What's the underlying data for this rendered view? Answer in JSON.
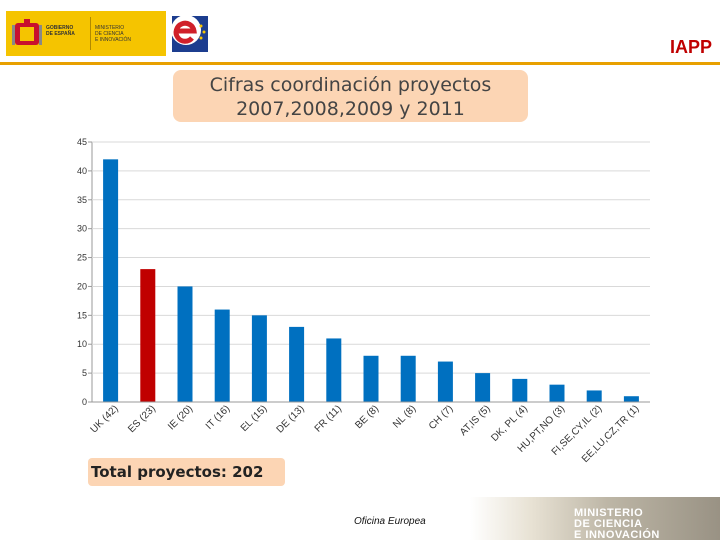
{
  "header": {
    "gov_text": "GOBIERNO\nDE ESPAÑA",
    "ministry_text": "MINISTERIO\nDE CIENCIA\nE INNOVACIÓN",
    "iapp": "IAPP"
  },
  "title_lines": [
    "Cifras coordinación proyectos",
    "2007,2008,2009 y 2011"
  ],
  "total_label": "Total proyectos: 202",
  "footer": {
    "office": "Oficina Europea",
    "brand_lines": [
      "MINISTERIO",
      "DE CIENCIA",
      "E INNOVACIÓN"
    ]
  },
  "colors": {
    "bar": "#0070c0",
    "highlight_bar": "#c00000",
    "accent": "#e8a000",
    "title_bg": "#fcd5b4"
  },
  "chart_data": {
    "type": "bar",
    "categories": [
      "UK (42)",
      "ES (23)",
      "IE (20)",
      "IT (16)",
      "EL (15)",
      "DE (13)",
      "FR (11)",
      "BE (8)",
      "NL (8)",
      "CH (7)",
      "AT,IS (5)",
      "DK, PL (4)",
      "HU,PT,NO (3)",
      "FI,SE,CY,IL (2)",
      "EE,LU,CZ,TR (1)"
    ],
    "values": [
      42,
      23,
      20,
      16,
      15,
      13,
      11,
      8,
      8,
      7,
      5,
      4,
      3,
      2,
      1
    ],
    "highlight_index": 1,
    "yticks": [
      "0",
      "5",
      "10",
      "15",
      "20",
      "25",
      "30",
      "35",
      "40",
      "45"
    ],
    "ylim": [
      0,
      45
    ],
    "grid": true,
    "legend": "none"
  }
}
